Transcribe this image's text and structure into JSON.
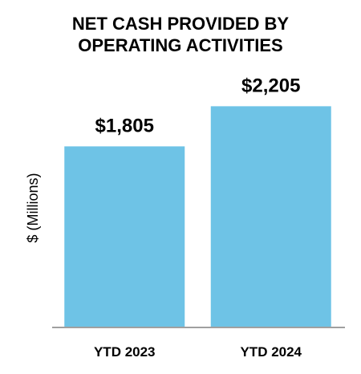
{
  "chart_data": {
    "type": "bar",
    "title_lines": [
      "NET CASH PROVIDED BY",
      "OPERATING ACTIVITIES"
    ],
    "ylabel": "$ (Millions)",
    "xlabel": "",
    "categories": [
      "YTD 2023",
      "YTD 2024"
    ],
    "values": [
      1805,
      2205
    ],
    "data_labels": [
      "$1,805",
      "$2,205"
    ],
    "ylim": [
      0,
      2400
    ],
    "grid": false,
    "legend": "none",
    "bar_color": "#6EC3E6",
    "axis_color": "#A0A0A0",
    "text_color": "#000000"
  }
}
